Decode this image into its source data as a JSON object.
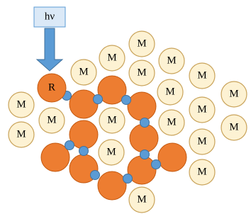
{
  "photon": {
    "label": "hν"
  },
  "radical": {
    "label": "R"
  },
  "molecules": [
    {
      "label": "M"
    },
    {
      "label": "M"
    },
    {
      "label": "M"
    },
    {
      "label": "M"
    },
    {
      "label": "M"
    },
    {
      "label": "M"
    },
    {
      "label": "M"
    },
    {
      "label": "M"
    },
    {
      "label": "M"
    },
    {
      "label": "M"
    },
    {
      "label": "M"
    },
    {
      "label": "M"
    },
    {
      "label": "M"
    },
    {
      "label": "M"
    },
    {
      "label": "M"
    },
    {
      "label": "M"
    },
    {
      "label": "M"
    },
    {
      "label": "M"
    },
    {
      "label": "M"
    }
  ]
}
